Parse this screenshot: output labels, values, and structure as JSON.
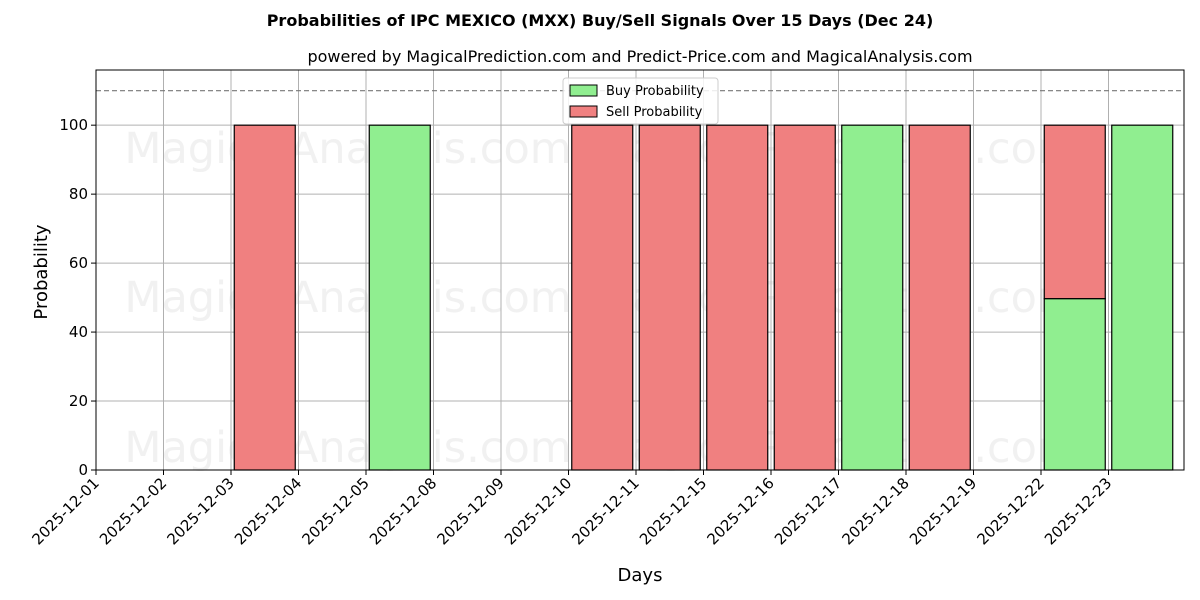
{
  "chart_data": {
    "type": "bar",
    "stacked": true,
    "title": "Probabilities of IPC MEXICO (MXX) Buy/Sell Signals Over 15 Days (Dec 24)",
    "subtitle": "powered by MagicalPrediction.com and Predict-Price.com and MagicalAnalysis.com",
    "xlabel": "Days",
    "ylabel": "Probability",
    "ylim": [
      0,
      116
    ],
    "yticks": [
      0,
      20,
      40,
      60,
      80,
      100
    ],
    "reference_line": 110,
    "grid": true,
    "legend_placement": "top-center",
    "categories": [
      "2025-12-01",
      "2025-12-02",
      "2025-12-03",
      "2025-12-04",
      "2025-12-05",
      "2025-12-08",
      "2025-12-09",
      "2025-12-10",
      "2025-12-11",
      "2025-12-15",
      "2025-12-16",
      "2025-12-17",
      "2025-12-18",
      "2025-12-19",
      "2025-12-22",
      "2025-12-23"
    ],
    "bars": [
      {
        "date": "2025-12-03",
        "buy": 0,
        "sell": 100
      },
      {
        "date": "2025-12-05",
        "buy": 100,
        "sell": 0
      },
      {
        "date": "2025-12-10",
        "buy": 0,
        "sell": 100
      },
      {
        "date": "2025-12-11",
        "buy": 0,
        "sell": 100
      },
      {
        "date": "2025-12-15",
        "buy": 0,
        "sell": 100
      },
      {
        "date": "2025-12-16",
        "buy": 0,
        "sell": 100
      },
      {
        "date": "2025-12-17",
        "buy": 100,
        "sell": 0
      },
      {
        "date": "2025-12-18",
        "buy": 0,
        "sell": 100
      },
      {
        "date": "2025-12-22",
        "buy": 49.7,
        "sell": 50.3
      },
      {
        "date": "2025-12-23",
        "buy": 100,
        "sell": 0
      }
    ],
    "series": [
      {
        "name": "Buy Probability",
        "color": "#90ee90"
      },
      {
        "name": "Sell Probability",
        "color": "#f08080"
      }
    ]
  },
  "watermarks": [
    "MagicalAnalysis.com",
    "MagicalPrediction.com"
  ]
}
